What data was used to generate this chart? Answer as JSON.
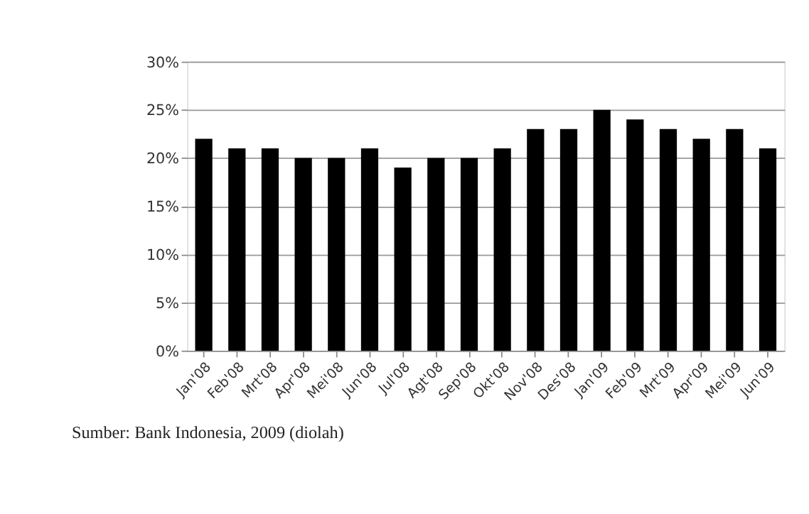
{
  "chart_data": {
    "type": "bar",
    "categories": [
      "Jan'08",
      "Feb'08",
      "Mrt'08",
      "Apr'08",
      "Mei'08",
      "Jun'08",
      "Jul'08",
      "Agt'08",
      "Sep'08",
      "Okt'08",
      "Nov'08",
      "Des'08",
      "Jan'09",
      "Feb'09",
      "Mrt'09",
      "Apr'09",
      "Mei'09",
      "Jun'09"
    ],
    "values": [
      22,
      21,
      21,
      20,
      20,
      21,
      19,
      20,
      20,
      21,
      23,
      23,
      25,
      24,
      23,
      22,
      23,
      21
    ],
    "color": "#000000",
    "ylim": [
      0,
      30
    ],
    "yticks": [
      {
        "value": 0,
        "label": "0%"
      },
      {
        "value": 5,
        "label": "5%"
      },
      {
        "value": 10,
        "label": "10%"
      },
      {
        "value": 15,
        "label": "15%"
      },
      {
        "value": 20,
        "label": "20%"
      },
      {
        "value": 25,
        "label": "25%"
      },
      {
        "value": 30,
        "label": "30%"
      }
    ],
    "grid": "y",
    "annotations": [
      "Sumber: Bank Indonesia, 2009 (diolah)"
    ]
  }
}
